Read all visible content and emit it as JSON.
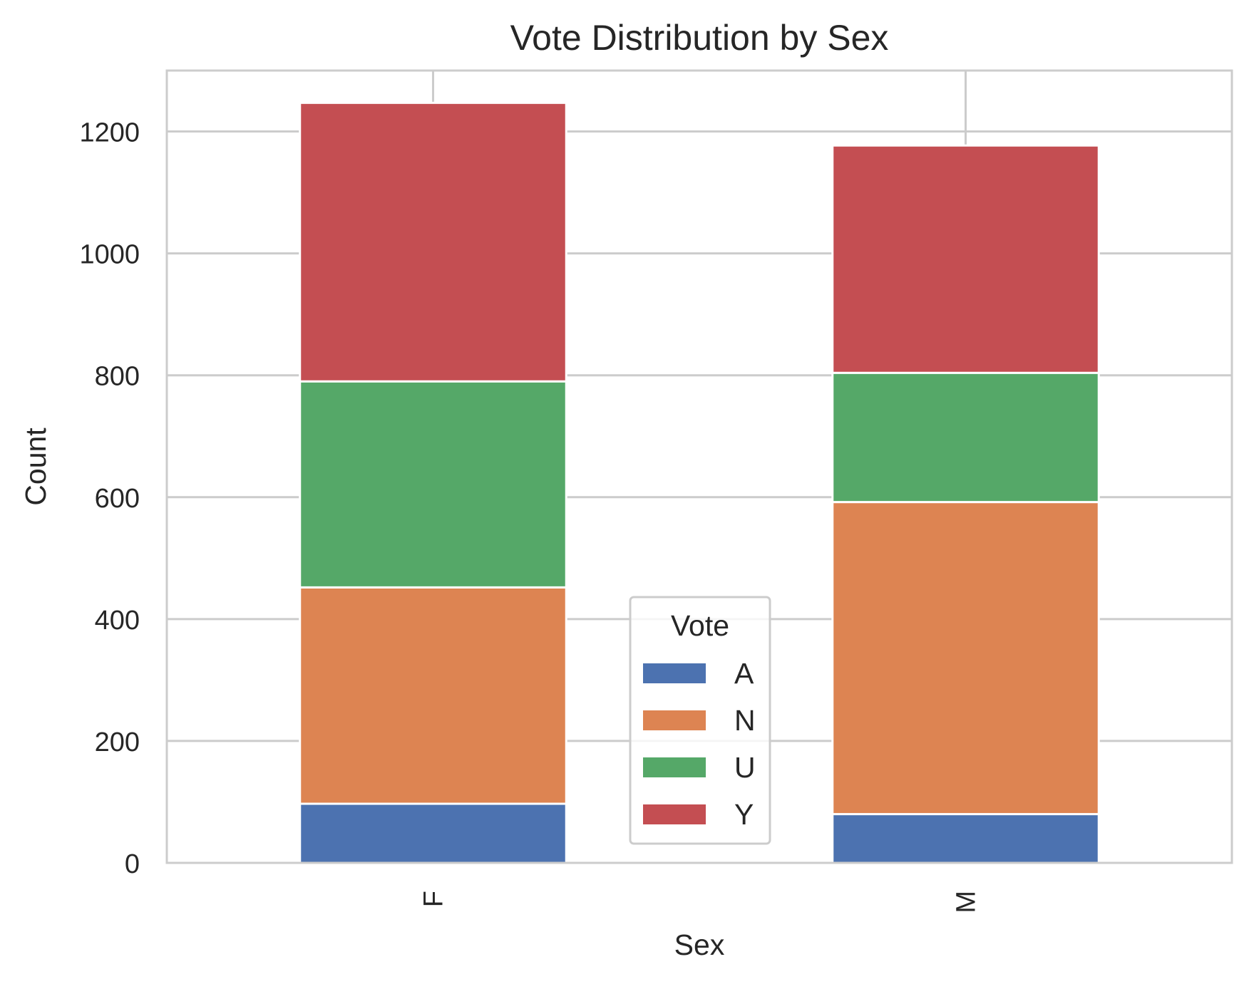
{
  "chart_data": {
    "type": "bar",
    "stacked": true,
    "title": "Vote Distribution by Sex",
    "xlabel": "Sex",
    "ylabel": "Count",
    "categories": [
      "F",
      "M"
    ],
    "ylim": [
      0,
      1300
    ],
    "yticks": [
      0,
      200,
      400,
      600,
      800,
      1000,
      1200
    ],
    "grid": true,
    "legend": {
      "title": "Vote",
      "placement": "lower center"
    },
    "series": [
      {
        "name": "A",
        "color": "#4c72b0",
        "values": [
          97,
          80
        ]
      },
      {
        "name": "N",
        "color": "#dd8452",
        "values": [
          355,
          512
        ]
      },
      {
        "name": "U",
        "color": "#55a868",
        "values": [
          338,
          212
        ]
      },
      {
        "name": "Y",
        "color": "#c44e52",
        "values": [
          457,
          373
        ]
      }
    ]
  }
}
